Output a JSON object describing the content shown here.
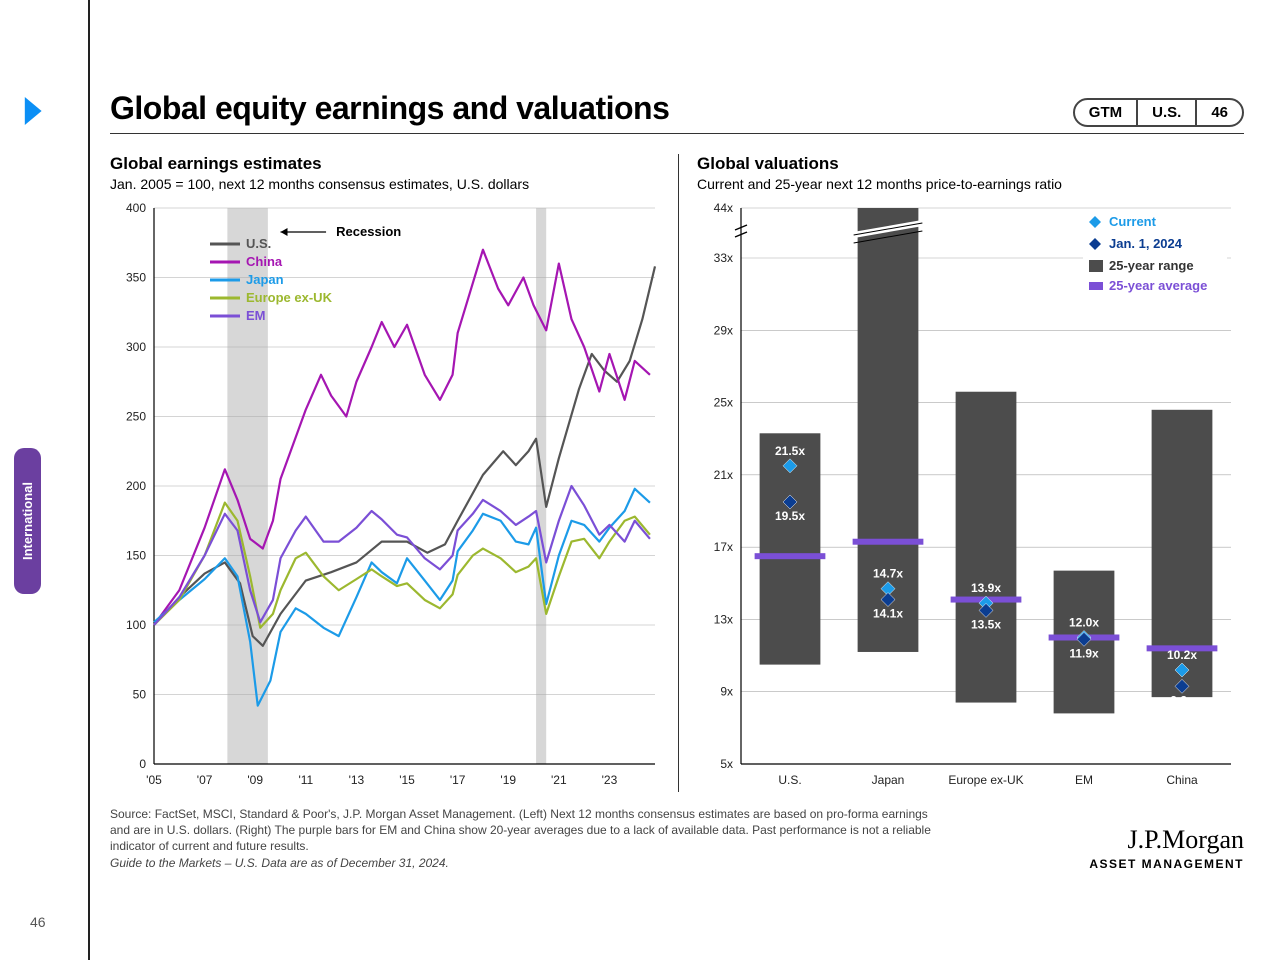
{
  "page_number": "46",
  "side_tab": "International",
  "pills": {
    "a": "GTM",
    "b": "U.S.",
    "c": "46"
  },
  "title": "Global equity earnings and valuations",
  "left": {
    "title": "Global earnings estimates",
    "subtitle": "Jan. 2005 = 100, next 12 months consensus estimates, U.S. dollars",
    "recession_label": "Recession",
    "ylim": [
      0,
      400
    ],
    "ytick_step": 50,
    "xlim": [
      2005,
      2024.8
    ],
    "xticks": [
      "'05",
      "'07",
      "'09",
      "'11",
      "'13",
      "'15",
      "'17",
      "'19",
      "'21",
      "'23"
    ],
    "recession_bands": [
      [
        2007.9,
        2009.5
      ],
      [
        2020.1,
        2020.5
      ]
    ],
    "series": {
      "us": {
        "label": "U.S.",
        "color": "#555555",
        "data": [
          [
            2005,
            100
          ],
          [
            2006,
            120
          ],
          [
            2007,
            137
          ],
          [
            2007.8,
            145
          ],
          [
            2008.4,
            130
          ],
          [
            2008.9,
            92
          ],
          [
            2009.3,
            85
          ],
          [
            2010,
            108
          ],
          [
            2011,
            132
          ],
          [
            2012,
            138
          ],
          [
            2013,
            145
          ],
          [
            2014,
            160
          ],
          [
            2015,
            160
          ],
          [
            2015.8,
            152
          ],
          [
            2016.5,
            158
          ],
          [
            2017,
            175
          ],
          [
            2018,
            208
          ],
          [
            2018.8,
            225
          ],
          [
            2019.3,
            215
          ],
          [
            2019.8,
            225
          ],
          [
            2020.1,
            234
          ],
          [
            2020.5,
            185
          ],
          [
            2021,
            220
          ],
          [
            2021.8,
            270
          ],
          [
            2022.3,
            295
          ],
          [
            2022.8,
            283
          ],
          [
            2023.3,
            275
          ],
          [
            2023.8,
            290
          ],
          [
            2024.3,
            320
          ],
          [
            2024.8,
            358
          ]
        ]
      },
      "china": {
        "label": "China",
        "color": "#a516b2",
        "data": [
          [
            2005,
            100
          ],
          [
            2006,
            125
          ],
          [
            2007,
            170
          ],
          [
            2007.8,
            212
          ],
          [
            2008.3,
            190
          ],
          [
            2008.8,
            162
          ],
          [
            2009.3,
            155
          ],
          [
            2009.7,
            175
          ],
          [
            2010,
            205
          ],
          [
            2010.5,
            230
          ],
          [
            2011,
            255
          ],
          [
            2011.6,
            280
          ],
          [
            2012,
            265
          ],
          [
            2012.6,
            250
          ],
          [
            2013,
            275
          ],
          [
            2013.6,
            300
          ],
          [
            2014,
            318
          ],
          [
            2014.5,
            300
          ],
          [
            2015,
            316
          ],
          [
            2015.7,
            280
          ],
          [
            2016.3,
            262
          ],
          [
            2016.8,
            280
          ],
          [
            2017,
            310
          ],
          [
            2017.5,
            340
          ],
          [
            2018,
            370
          ],
          [
            2018.6,
            342
          ],
          [
            2019,
            330
          ],
          [
            2019.6,
            350
          ],
          [
            2020,
            330
          ],
          [
            2020.5,
            312
          ],
          [
            2021,
            360
          ],
          [
            2021.5,
            320
          ],
          [
            2022,
            300
          ],
          [
            2022.6,
            268
          ],
          [
            2023,
            295
          ],
          [
            2023.6,
            262
          ],
          [
            2024,
            290
          ],
          [
            2024.6,
            280
          ]
        ]
      },
      "japan": {
        "label": "Japan",
        "color": "#1c9be8",
        "data": [
          [
            2005,
            102
          ],
          [
            2006,
            118
          ],
          [
            2007,
            133
          ],
          [
            2007.8,
            148
          ],
          [
            2008.3,
            135
          ],
          [
            2008.8,
            88
          ],
          [
            2009.1,
            42
          ],
          [
            2009.6,
            60
          ],
          [
            2010,
            95
          ],
          [
            2010.6,
            112
          ],
          [
            2011,
            108
          ],
          [
            2011.7,
            98
          ],
          [
            2012.3,
            92
          ],
          [
            2013,
            120
          ],
          [
            2013.6,
            145
          ],
          [
            2014,
            138
          ],
          [
            2014.6,
            130
          ],
          [
            2015,
            148
          ],
          [
            2015.7,
            132
          ],
          [
            2016.3,
            118
          ],
          [
            2016.8,
            132
          ],
          [
            2017,
            153
          ],
          [
            2017.6,
            168
          ],
          [
            2018,
            180
          ],
          [
            2018.7,
            175
          ],
          [
            2019.3,
            160
          ],
          [
            2019.8,
            158
          ],
          [
            2020.1,
            170
          ],
          [
            2020.5,
            115
          ],
          [
            2021,
            150
          ],
          [
            2021.5,
            175
          ],
          [
            2022,
            172
          ],
          [
            2022.6,
            160
          ],
          [
            2023,
            170
          ],
          [
            2023.6,
            182
          ],
          [
            2024,
            198
          ],
          [
            2024.6,
            188
          ]
        ]
      },
      "europe": {
        "label": "Europe ex-UK",
        "color": "#9cb82f",
        "data": [
          [
            2005,
            100
          ],
          [
            2006,
            118
          ],
          [
            2007,
            150
          ],
          [
            2007.8,
            188
          ],
          [
            2008.3,
            175
          ],
          [
            2008.8,
            135
          ],
          [
            2009.2,
            98
          ],
          [
            2009.7,
            108
          ],
          [
            2010,
            125
          ],
          [
            2010.6,
            148
          ],
          [
            2011,
            152
          ],
          [
            2011.7,
            135
          ],
          [
            2012.3,
            125
          ],
          [
            2013,
            133
          ],
          [
            2013.6,
            140
          ],
          [
            2014,
            135
          ],
          [
            2014.6,
            128
          ],
          [
            2015,
            130
          ],
          [
            2015.7,
            118
          ],
          [
            2016.3,
            112
          ],
          [
            2016.8,
            122
          ],
          [
            2017,
            136
          ],
          [
            2017.6,
            150
          ],
          [
            2018,
            155
          ],
          [
            2018.7,
            148
          ],
          [
            2019.3,
            138
          ],
          [
            2019.8,
            142
          ],
          [
            2020.1,
            148
          ],
          [
            2020.5,
            108
          ],
          [
            2021,
            135
          ],
          [
            2021.5,
            160
          ],
          [
            2022,
            162
          ],
          [
            2022.6,
            148
          ],
          [
            2023,
            160
          ],
          [
            2023.6,
            175
          ],
          [
            2024,
            178
          ],
          [
            2024.6,
            165
          ]
        ]
      },
      "em": {
        "label": "EM",
        "color": "#7b4fd6",
        "data": [
          [
            2005,
            100
          ],
          [
            2006,
            120
          ],
          [
            2007,
            150
          ],
          [
            2007.8,
            180
          ],
          [
            2008.3,
            168
          ],
          [
            2008.8,
            125
          ],
          [
            2009.2,
            102
          ],
          [
            2009.7,
            118
          ],
          [
            2010,
            148
          ],
          [
            2010.6,
            168
          ],
          [
            2011,
            178
          ],
          [
            2011.7,
            160
          ],
          [
            2012.3,
            160
          ],
          [
            2013,
            170
          ],
          [
            2013.6,
            182
          ],
          [
            2014,
            176
          ],
          [
            2014.6,
            165
          ],
          [
            2015,
            163
          ],
          [
            2015.7,
            148
          ],
          [
            2016.3,
            140
          ],
          [
            2016.8,
            150
          ],
          [
            2017,
            168
          ],
          [
            2017.6,
            180
          ],
          [
            2018,
            190
          ],
          [
            2018.7,
            182
          ],
          [
            2019.3,
            172
          ],
          [
            2019.8,
            178
          ],
          [
            2020.1,
            182
          ],
          [
            2020.5,
            145
          ],
          [
            2021,
            175
          ],
          [
            2021.5,
            200
          ],
          [
            2022,
            186
          ],
          [
            2022.6,
            165
          ],
          [
            2023,
            172
          ],
          [
            2023.6,
            160
          ],
          [
            2024,
            175
          ],
          [
            2024.6,
            162
          ]
        ]
      }
    },
    "legend_order": [
      "us",
      "china",
      "japan",
      "europe",
      "em"
    ]
  },
  "right": {
    "title": "Global valuations",
    "subtitle": "Current and 25-year next 12 months price-to-earnings ratio",
    "ylim": [
      5,
      35
    ],
    "yticks": [
      {
        "v": 5,
        "l": "5x"
      },
      {
        "v": 9,
        "l": "9x"
      },
      {
        "v": 13,
        "l": "13x"
      },
      {
        "v": 17,
        "l": "17x"
      },
      {
        "v": 21,
        "l": "21x"
      },
      {
        "v": 25,
        "l": "25x"
      },
      {
        "v": 29,
        "l": "29x"
      },
      {
        "v": 33,
        "l": "33x"
      },
      {
        "v": 44,
        "l": "44x"
      }
    ],
    "legend": {
      "current": "Current",
      "jan": "Jan. 1, 2024",
      "range": "25-year range",
      "avg": "25-year average"
    },
    "colors": {
      "current": "#1c9be8",
      "jan": "#0b3d91",
      "range": "#4c4c4c",
      "avg": "#7b4fd6"
    },
    "categories": [
      {
        "name": "U.S.",
        "range": [
          10.5,
          23.3
        ],
        "avg": 16.5,
        "current": 21.5,
        "jan": 19.5,
        "cur_label": "21.5x",
        "jan_label": "19.5x"
      },
      {
        "name": "Japan",
        "range": [
          11.2,
          44.0
        ],
        "avg": 17.3,
        "current": 14.7,
        "jan": 14.1,
        "cur_label": "14.7x",
        "jan_label": "14.1x"
      },
      {
        "name": "Europe ex-UK",
        "range": [
          8.4,
          25.6
        ],
        "avg": 14.1,
        "current": 13.9,
        "jan": 13.5,
        "cur_label": "13.9x",
        "jan_label": "13.5x"
      },
      {
        "name": "EM",
        "range": [
          7.8,
          15.7
        ],
        "avg": 12.0,
        "current": 12.0,
        "jan": 11.9,
        "cur_label": "12.0x",
        "jan_label": "11.9x"
      },
      {
        "name": "China",
        "range": [
          8.7,
          24.6
        ],
        "avg": 11.4,
        "current": 10.2,
        "jan": 9.3,
        "cur_label": "10.2x",
        "jan_label": "9.3x"
      }
    ]
  },
  "footnote_1": "Source: FactSet, MSCI, Standard & Poor's, J.P. Morgan Asset Management. (Left) Next 12 months consensus estimates are based on pro-forma earnings and are in U.S. dollars. (Right) The purple bars for EM and China show 20-year averages due to a lack of available data. Past performance is not a reliable indicator of current and future results.",
  "footnote_2": "Guide to the Markets – U.S. Data are as of December 31, 2024.",
  "brand": {
    "top": "J.P.Morgan",
    "bottom": "ASSET MANAGEMENT"
  }
}
